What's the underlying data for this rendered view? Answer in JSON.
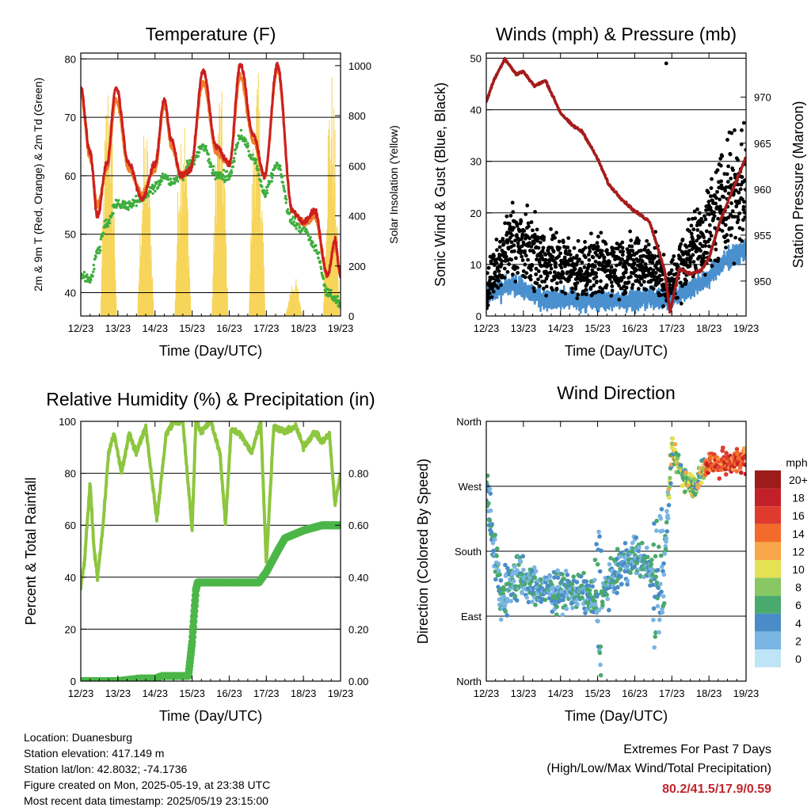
{
  "colors": {
    "temp_2m": "#cc1f1f",
    "temp_9m": "#f07f2a",
    "dewpoint": "#3fae3f",
    "solar": "#f7d55a",
    "wind": "#4a90cf",
    "gust": "#000000",
    "pressure": "#a51c1c",
    "rh": "#8dc63f",
    "precip": "#4cb648",
    "extremes": "#c0262d"
  },
  "x_ticks": [
    "12/23",
    "13/23",
    "14/23",
    "15/23",
    "16/23",
    "17/23",
    "18/23",
    "19/23"
  ],
  "x_label": "Time (Day/UTC)",
  "chart_data": [
    {
      "id": "temperature",
      "type": "line",
      "title": "Temperature (F)",
      "xlabel": "Time (Day/UTC)",
      "ylabel": "2m & 9m T (Red, Orange) & 2m Td (Green)",
      "y2label": "Solar Insolation (Yellow)",
      "ylim": [
        36,
        81
      ],
      "yticks": [
        40,
        50,
        60,
        70,
        80
      ],
      "y2lim": [
        0,
        1050
      ],
      "y2ticks": [
        0,
        200,
        400,
        600,
        800,
        1000
      ],
      "grid": true,
      "x_days": [
        12,
        12.25,
        12.45,
        12.7,
        12.95,
        13.3,
        13.65,
        14,
        14.25,
        14.45,
        14.7,
        14.95,
        15.3,
        15.65,
        16,
        16.3,
        16.65,
        16.95,
        17.3,
        17.7,
        18,
        18.3,
        18.65,
        18.85,
        19
      ],
      "series": [
        {
          "name": "2m T",
          "axis": "left",
          "values": [
            75,
            64,
            53,
            62,
            75,
            62,
            56,
            62,
            73,
            66,
            60,
            61,
            78,
            65,
            62,
            79,
            67,
            60,
            79,
            54,
            52,
            54,
            43,
            49,
            43
          ]
        },
        {
          "name": "9m T",
          "axis": "left",
          "values": [
            74,
            63,
            55,
            61,
            73,
            61,
            57,
            61,
            72,
            65,
            60,
            61,
            76,
            64,
            62,
            77,
            66,
            60,
            78,
            54,
            52,
            53,
            43,
            48,
            43
          ]
        },
        {
          "name": "2m Td",
          "axis": "left",
          "values": [
            43,
            42,
            47,
            52,
            55,
            55,
            56,
            58,
            60,
            59,
            60,
            62,
            65,
            60,
            60,
            67,
            63,
            57,
            62,
            52,
            51,
            48,
            40,
            39,
            38
          ]
        },
        {
          "name": "Solar Insolation",
          "axis": "right",
          "type": "area",
          "peaks": [
            {
              "day": 12.75,
              "max": 1000
            },
            {
              "day": 13.75,
              "max": 780
            },
            {
              "day": 14.75,
              "max": 900
            },
            {
              "day": 15.75,
              "max": 960
            },
            {
              "day": 16.75,
              "max": 1000
            },
            {
              "day": 17.75,
              "max": 160
            },
            {
              "day": 18.75,
              "max": 1000
            }
          ]
        }
      ]
    },
    {
      "id": "winds",
      "type": "scatter",
      "title": "Winds (mph) & Pressure (mb)",
      "xlabel": "Time (Day/UTC)",
      "ylabel": "Sonic Wind & Gust (Blue, Black)",
      "y2label": "Station Pressure (Maroon)",
      "ylim": [
        0,
        51
      ],
      "yticks": [
        0,
        10,
        20,
        30,
        40,
        50
      ],
      "y2lim": [
        946.2,
        974.8
      ],
      "y2ticks": [
        950,
        955,
        960,
        965,
        970
      ],
      "grid": true,
      "pressure": {
        "x": [
          12,
          12.2,
          12.5,
          12.8,
          13,
          13.3,
          13.6,
          14,
          14.3,
          14.6,
          15,
          15.3,
          15.7,
          16,
          16.4,
          16.8,
          16.95,
          17.2,
          17.5,
          17.8,
          18,
          18.3,
          18.7,
          19
        ],
        "y": [
          969.5,
          971.8,
          974.2,
          972.5,
          972.8,
          971.2,
          971.8,
          968.3,
          967,
          966.2,
          963.3,
          960.5,
          958.7,
          957.6,
          956.5,
          951.3,
          946.6,
          951.3,
          950.8,
          951.2,
          952.5,
          956.5,
          960.5,
          963.5
        ]
      },
      "wind_mean": {
        "x": [
          12,
          12.7,
          13.5,
          14.5,
          15.5,
          16.5,
          16.9,
          17.4,
          17.9,
          18.5,
          19
        ],
        "y": [
          4,
          6,
          3.5,
          3,
          3,
          3.5,
          3,
          5,
          7,
          11,
          13
        ]
      },
      "gust_mean": {
        "x": [
          12,
          12.7,
          13.5,
          14.5,
          15.5,
          16.5,
          16.9,
          17.4,
          17.9,
          18.5,
          19
        ],
        "y": [
          5,
          15,
          11,
          9,
          10,
          10,
          5,
          12,
          16,
          24,
          25
        ]
      },
      "gust_max": 49
    },
    {
      "id": "humidity",
      "type": "line",
      "title": "Relative Humidity (%) & Precipitation (in)",
      "xlabel": "Time (Day/UTC)",
      "ylabel": "Percent & Total Rainfall",
      "ylim": [
        0,
        100
      ],
      "yticks": [
        0,
        20,
        40,
        60,
        80,
        100
      ],
      "y2lim": [
        0,
        1
      ],
      "y2ticks": [
        "0.00",
        "0.20",
        "0.40",
        "0.60",
        "0.80"
      ],
      "grid": true,
      "rh": {
        "x": [
          12,
          12.1,
          12.25,
          12.35,
          12.45,
          12.6,
          12.75,
          12.9,
          13.1,
          13.3,
          13.5,
          13.75,
          13.9,
          14.05,
          14.3,
          14.5,
          14.75,
          15,
          15.1,
          15.25,
          15.5,
          15.75,
          15.9,
          16.05,
          16.3,
          16.6,
          16.85,
          17,
          17.2,
          17.5,
          17.8,
          18,
          18.3,
          18.5,
          18.7,
          18.85,
          19
        ],
        "y": [
          36,
          46,
          76,
          52,
          40,
          60,
          88,
          95,
          80,
          95,
          88,
          98,
          80,
          62,
          95,
          100,
          100,
          58,
          100,
          96,
          100,
          88,
          60,
          97,
          95,
          88,
          100,
          45,
          98,
          96,
          98,
          90,
          96,
          92,
          95,
          68,
          80
        ]
      },
      "precip": {
        "x": [
          12,
          13,
          13.6,
          14,
          14.2,
          14.9,
          15,
          15.1,
          15.15,
          16.8,
          17,
          17.3,
          17.5,
          18,
          18.5,
          19
        ],
        "y": [
          0,
          0,
          0.01,
          0.01,
          0.02,
          0.02,
          0.15,
          0.35,
          0.38,
          0.38,
          0.42,
          0.5,
          0.55,
          0.58,
          0.6,
          0.6
        ]
      }
    },
    {
      "id": "direction",
      "type": "scatter",
      "title": "Wind Direction",
      "xlabel": "Time (Day/UTC)",
      "ylabel": "Direction (Colored By Speed)",
      "ylim": [
        0,
        360
      ],
      "yticks": [
        "North",
        "East",
        "South",
        "West",
        "North"
      ],
      "grid": true,
      "dir_mean": {
        "x": [
          12,
          12.4,
          12.8,
          13.5,
          14.5,
          15,
          15.5,
          16,
          16.5,
          16.8,
          17,
          17.3,
          17.6,
          18,
          18.5,
          19
        ],
        "y": [
          270,
          115,
          145,
          125,
          125,
          110,
          150,
          175,
          150,
          165,
          320,
          285,
          270,
          305,
          300,
          310
        ]
      },
      "colorbar": {
        "label": "mph",
        "labels": [
          "20+",
          "18",
          "16",
          "14",
          "12",
          "10",
          "8",
          "6",
          "4",
          "2",
          "0"
        ],
        "colors": [
          "#9c1c1c",
          "#c22028",
          "#de3b2e",
          "#f26b2b",
          "#f9a64a",
          "#e4e154",
          "#88c763",
          "#4aa96c",
          "#4a8cc8",
          "#7ab5e3",
          "#bfe4f6"
        ]
      }
    }
  ],
  "info": {
    "location": "Location: Duanesburg",
    "elevation": "Station elevation: 417.149 m",
    "latlon": "Station lat/lon: 42.8032; -74.1736",
    "created": "Figure created on Mon, 2025-05-19, at 23:38 UTC",
    "latest": "Most recent data timestamp: 2025/05/19 23:15:00"
  },
  "extremes": {
    "title": "Extremes For Past 7 Days",
    "subtitle": "(High/Low/Max Wind/Total Precipitation)",
    "values": "80.2/41.5/17.9/0.59"
  }
}
